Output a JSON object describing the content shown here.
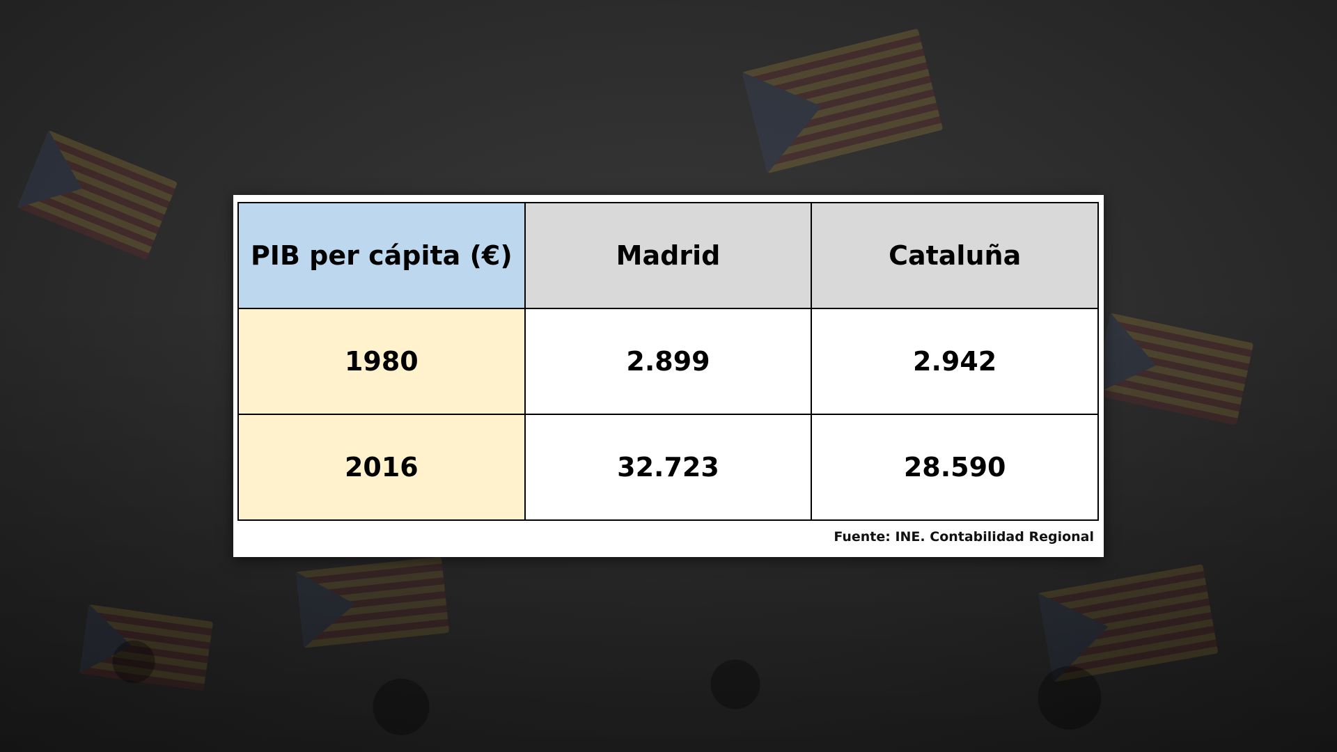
{
  "chart_data": {
    "type": "table",
    "header": {
      "corner": "PIB per cápita (€)",
      "columns": [
        "Madrid",
        "Cataluña"
      ]
    },
    "rows": [
      {
        "label": "1980",
        "values": [
          "2.899",
          "2.942"
        ]
      },
      {
        "label": "2016",
        "values": [
          "32.723",
          "28.590"
        ]
      }
    ],
    "source": "Fuente: INE. Contabilidad Regional"
  },
  "colors": {
    "corner_bg": "#bdd7ee",
    "column_header_bg": "#d9d9d9",
    "row_header_bg": "#fff2cc",
    "cell_bg": "#ffffff"
  }
}
